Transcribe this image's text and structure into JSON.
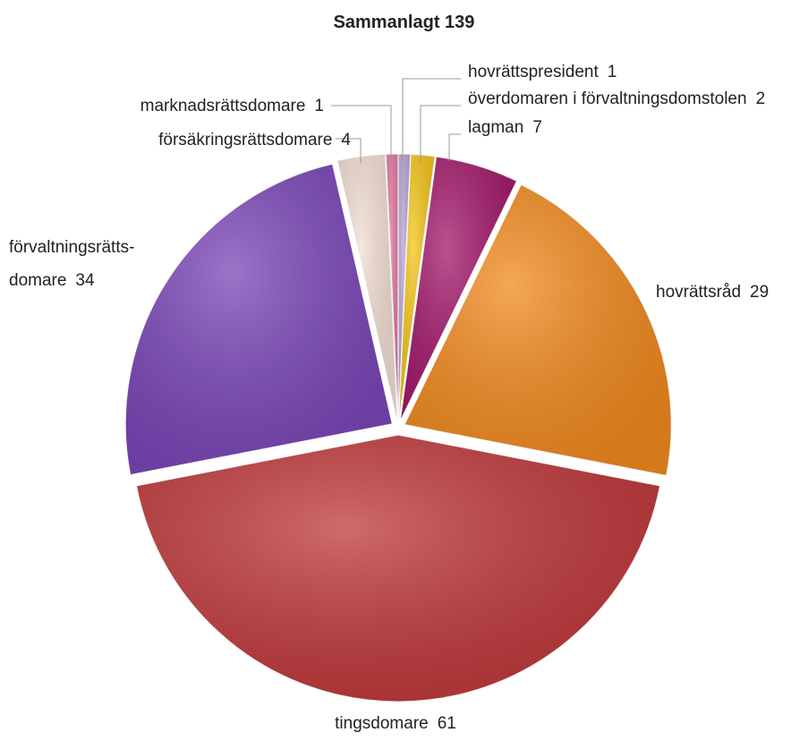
{
  "chart_data": {
    "type": "pie",
    "title": "Sammanlagt 139",
    "categories": [
      "hovrättspresident",
      "överdomaren i förvaltningsdomstolen",
      "lagman",
      "hovrättsråd",
      "tingsdomare",
      "förvaltningsrätts-\ndomare",
      "försäkringsrättsdomare",
      "marknadsrättsdomare"
    ],
    "values": [
      1,
      2,
      7,
      29,
      61,
      34,
      4,
      1
    ],
    "colors": [
      "#b9a6d8",
      "#f5c518",
      "#a3196b",
      "#f28a1e",
      "#c0393b",
      "#7a46b8",
      "#f3dfd3",
      "#e57aa0"
    ]
  }
}
